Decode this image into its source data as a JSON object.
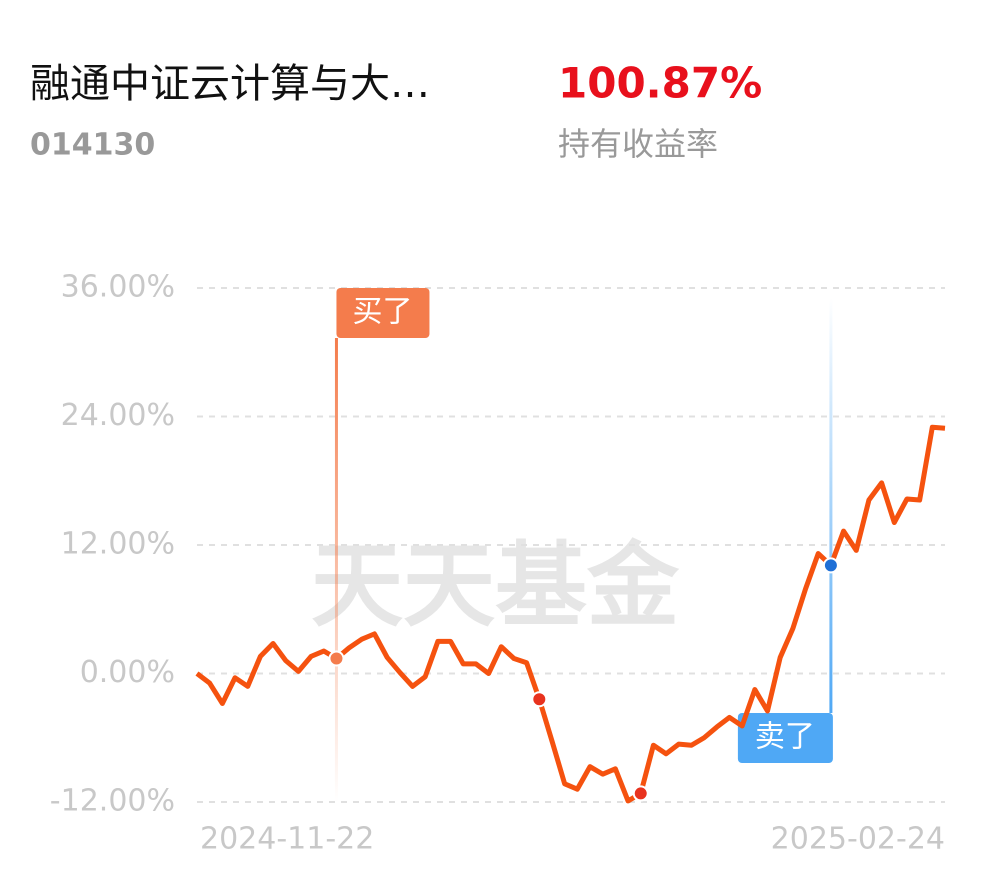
{
  "header": {
    "fund_name": "融通中证云计算与大…",
    "fund_code": "014130",
    "return_value": "100.87%",
    "return_label": "持有收益率"
  },
  "chart_data": {
    "type": "line",
    "watermark": "天天基金",
    "categories": [
      "2024-11-22",
      null,
      null,
      null,
      null,
      null,
      null,
      null,
      null,
      null,
      null,
      null,
      null,
      null,
      null,
      null,
      null,
      null,
      null,
      null,
      null,
      null,
      null,
      null,
      null,
      null,
      null,
      null,
      null,
      null,
      null,
      null,
      null,
      null,
      null,
      null,
      null,
      null,
      null,
      null,
      null,
      null,
      null,
      null,
      null,
      null,
      null,
      null,
      null,
      null,
      null,
      null,
      null,
      null,
      null,
      null,
      null,
      null,
      null,
      "2025-02-24"
    ],
    "series": [
      {
        "color": "#f5520f",
        "values": [
          0,
          -0.9,
          -2.8,
          -0.4,
          -1.2,
          1.6,
          2.8,
          1.2,
          0.2,
          1.6,
          2.1,
          1.4,
          2.4,
          3.2,
          3.7,
          1.5,
          0.1,
          -1.2,
          -0.3,
          3.0,
          3.0,
          0.9,
          0.9,
          0,
          2.5,
          1.4,
          1.0,
          -2.4,
          -6.3,
          -10.3,
          -10.8,
          -8.7,
          -9.4,
          -8.9,
          -11.9,
          -11.2,
          -6.7,
          -7.5,
          -6.6,
          -6.7,
          -6.0,
          -5.0,
          -4.1,
          -4.9,
          -1.5,
          -3.5,
          1.5,
          4.2,
          7.9,
          11.2,
          10.1,
          13.3,
          11.5,
          16.2,
          17.8,
          14.1,
          16.3,
          16.2,
          23.0,
          22.9
        ]
      }
    ],
    "markers": [
      {
        "index": 11,
        "label": "买了",
        "color": "#f47c4c"
      },
      {
        "index": 27,
        "color": "#e8321e"
      },
      {
        "index": 35,
        "color": "#e8321e"
      },
      {
        "index": 50,
        "label": "卖了",
        "color": "#4fa8f5"
      }
    ],
    "ylim": [
      -12,
      36
    ],
    "yticks": [
      {
        "value": 36,
        "label": "36.00%"
      },
      {
        "value": 24,
        "label": "24.00%"
      },
      {
        "value": 12,
        "label": "12.00%"
      },
      {
        "value": 0,
        "label": "0.00%"
      },
      {
        "value": -12,
        "label": "-12.00%"
      }
    ],
    "grid": true
  }
}
